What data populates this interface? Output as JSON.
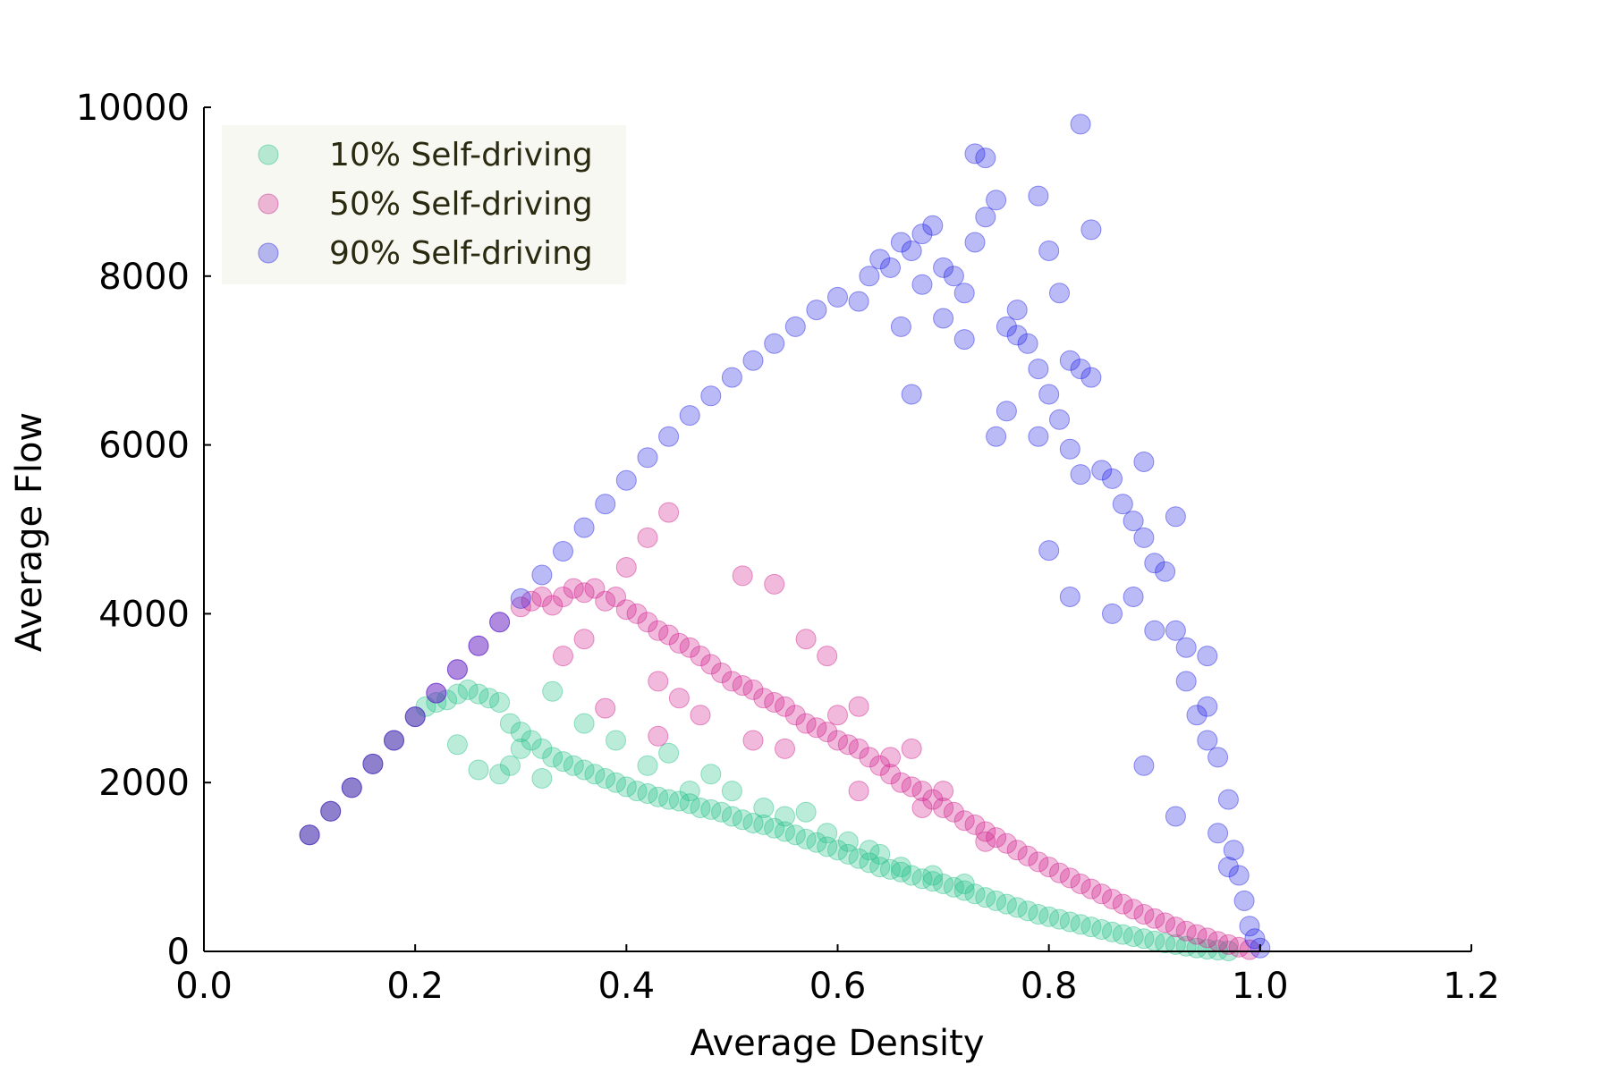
{
  "chart_data": {
    "type": "scatter",
    "title": "",
    "xlabel": "Average Density",
    "ylabel": "Average Flow",
    "xlim": [
      0.0,
      1.2
    ],
    "ylim": [
      0,
      10000
    ],
    "x_ticks": [
      0.0,
      0.2,
      0.4,
      0.6,
      0.8,
      1.0,
      1.2
    ],
    "x_tick_labels": [
      "0.0",
      "0.2",
      "0.4",
      "0.6",
      "0.8",
      "1.0",
      "1.2"
    ],
    "y_ticks": [
      0,
      2000,
      4000,
      6000,
      8000,
      10000
    ],
    "y_tick_labels": [
      "0",
      "2000",
      "4000",
      "6000",
      "8000",
      "10000"
    ],
    "grid": false,
    "legend_position": "top-left",
    "series": [
      {
        "name": "10% Self-driving",
        "color": "#1fbf86",
        "points": [
          [
            0.1,
            1380
          ],
          [
            0.12,
            1660
          ],
          [
            0.14,
            1940
          ],
          [
            0.16,
            2220
          ],
          [
            0.18,
            2500
          ],
          [
            0.2,
            2780
          ],
          [
            0.21,
            2900
          ],
          [
            0.22,
            2950
          ],
          [
            0.23,
            2980
          ],
          [
            0.24,
            3050
          ],
          [
            0.25,
            3100
          ],
          [
            0.26,
            3050
          ],
          [
            0.27,
            3000
          ],
          [
            0.28,
            2950
          ],
          [
            0.29,
            2700
          ],
          [
            0.3,
            2600
          ],
          [
            0.31,
            2500
          ],
          [
            0.32,
            2400
          ],
          [
            0.33,
            2300
          ],
          [
            0.34,
            2250
          ],
          [
            0.35,
            2200
          ],
          [
            0.36,
            2150
          ],
          [
            0.37,
            2100
          ],
          [
            0.38,
            2050
          ],
          [
            0.39,
            2000
          ],
          [
            0.4,
            1950
          ],
          [
            0.41,
            1900
          ],
          [
            0.42,
            1870
          ],
          [
            0.43,
            1830
          ],
          [
            0.44,
            1800
          ],
          [
            0.45,
            1780
          ],
          [
            0.46,
            1750
          ],
          [
            0.47,
            1700
          ],
          [
            0.48,
            1680
          ],
          [
            0.49,
            1650
          ],
          [
            0.5,
            1600
          ],
          [
            0.51,
            1560
          ],
          [
            0.52,
            1520
          ],
          [
            0.53,
            1500
          ],
          [
            0.54,
            1460
          ],
          [
            0.55,
            1420
          ],
          [
            0.56,
            1380
          ],
          [
            0.57,
            1330
          ],
          [
            0.58,
            1290
          ],
          [
            0.59,
            1240
          ],
          [
            0.6,
            1200
          ],
          [
            0.61,
            1150
          ],
          [
            0.62,
            1100
          ],
          [
            0.63,
            1050
          ],
          [
            0.64,
            1000
          ],
          [
            0.65,
            970
          ],
          [
            0.66,
            940
          ],
          [
            0.67,
            900
          ],
          [
            0.68,
            860
          ],
          [
            0.69,
            830
          ],
          [
            0.7,
            800
          ],
          [
            0.71,
            760
          ],
          [
            0.72,
            720
          ],
          [
            0.73,
            680
          ],
          [
            0.74,
            640
          ],
          [
            0.75,
            600
          ],
          [
            0.76,
            560
          ],
          [
            0.77,
            520
          ],
          [
            0.78,
            480
          ],
          [
            0.79,
            440
          ],
          [
            0.8,
            410
          ],
          [
            0.81,
            380
          ],
          [
            0.82,
            350
          ],
          [
            0.83,
            320
          ],
          [
            0.84,
            290
          ],
          [
            0.85,
            260
          ],
          [
            0.86,
            230
          ],
          [
            0.87,
            200
          ],
          [
            0.88,
            175
          ],
          [
            0.89,
            150
          ],
          [
            0.9,
            125
          ],
          [
            0.91,
            100
          ],
          [
            0.92,
            80
          ],
          [
            0.93,
            60
          ],
          [
            0.94,
            40
          ],
          [
            0.95,
            25
          ],
          [
            0.96,
            15
          ],
          [
            0.97,
            5
          ],
          [
            0.24,
            2450
          ],
          [
            0.26,
            2150
          ],
          [
            0.28,
            2100
          ],
          [
            0.3,
            2400
          ],
          [
            0.33,
            3080
          ],
          [
            0.36,
            2700
          ],
          [
            0.32,
            2050
          ],
          [
            0.29,
            2200
          ],
          [
            0.39,
            2500
          ],
          [
            0.42,
            2200
          ],
          [
            0.44,
            2350
          ],
          [
            0.46,
            1900
          ],
          [
            0.48,
            2100
          ],
          [
            0.5,
            1900
          ],
          [
            0.53,
            1700
          ],
          [
            0.55,
            1600
          ],
          [
            0.57,
            1650
          ],
          [
            0.59,
            1400
          ],
          [
            0.61,
            1300
          ],
          [
            0.63,
            1200
          ],
          [
            0.64,
            1150
          ],
          [
            0.66,
            1000
          ],
          [
            0.69,
            900
          ],
          [
            0.72,
            800
          ]
        ]
      },
      {
        "name": "50% Self-driving",
        "color": "#cf1a8a",
        "points": [
          [
            0.1,
            1380
          ],
          [
            0.12,
            1660
          ],
          [
            0.14,
            1940
          ],
          [
            0.16,
            2220
          ],
          [
            0.18,
            2500
          ],
          [
            0.2,
            2780
          ],
          [
            0.22,
            3060
          ],
          [
            0.24,
            3340
          ],
          [
            0.26,
            3620
          ],
          [
            0.28,
            3900
          ],
          [
            0.3,
            4080
          ],
          [
            0.31,
            4150
          ],
          [
            0.32,
            4200
          ],
          [
            0.33,
            4100
          ],
          [
            0.34,
            4200
          ],
          [
            0.35,
            4300
          ],
          [
            0.36,
            4250
          ],
          [
            0.37,
            4300
          ],
          [
            0.38,
            4150
          ],
          [
            0.39,
            4200
          ],
          [
            0.4,
            4050
          ],
          [
            0.41,
            4000
          ],
          [
            0.42,
            3900
          ],
          [
            0.43,
            3800
          ],
          [
            0.44,
            3750
          ],
          [
            0.45,
            3650
          ],
          [
            0.46,
            3600
          ],
          [
            0.47,
            3500
          ],
          [
            0.48,
            3400
          ],
          [
            0.49,
            3300
          ],
          [
            0.5,
            3200
          ],
          [
            0.51,
            3150
          ],
          [
            0.52,
            3100
          ],
          [
            0.53,
            3000
          ],
          [
            0.54,
            2950
          ],
          [
            0.55,
            2900
          ],
          [
            0.56,
            2800
          ],
          [
            0.57,
            2700
          ],
          [
            0.58,
            2650
          ],
          [
            0.59,
            2600
          ],
          [
            0.6,
            2500
          ],
          [
            0.61,
            2450
          ],
          [
            0.62,
            2400
          ],
          [
            0.63,
            2300
          ],
          [
            0.64,
            2200
          ],
          [
            0.65,
            2100
          ],
          [
            0.66,
            2000
          ],
          [
            0.67,
            1950
          ],
          [
            0.68,
            1900
          ],
          [
            0.69,
            1800
          ],
          [
            0.7,
            1700
          ],
          [
            0.71,
            1650
          ],
          [
            0.72,
            1550
          ],
          [
            0.73,
            1500
          ],
          [
            0.74,
            1420
          ],
          [
            0.75,
            1350
          ],
          [
            0.76,
            1280
          ],
          [
            0.77,
            1200
          ],
          [
            0.78,
            1130
          ],
          [
            0.79,
            1060
          ],
          [
            0.8,
            1000
          ],
          [
            0.81,
            930
          ],
          [
            0.82,
            870
          ],
          [
            0.83,
            800
          ],
          [
            0.84,
            740
          ],
          [
            0.85,
            680
          ],
          [
            0.86,
            620
          ],
          [
            0.87,
            560
          ],
          [
            0.88,
            500
          ],
          [
            0.89,
            440
          ],
          [
            0.9,
            390
          ],
          [
            0.91,
            340
          ],
          [
            0.92,
            290
          ],
          [
            0.93,
            240
          ],
          [
            0.94,
            200
          ],
          [
            0.95,
            160
          ],
          [
            0.96,
            120
          ],
          [
            0.97,
            80
          ],
          [
            0.98,
            50
          ],
          [
            0.99,
            20
          ],
          [
            0.44,
            5200
          ],
          [
            0.42,
            4900
          ],
          [
            0.4,
            4550
          ],
          [
            0.51,
            4450
          ],
          [
            0.54,
            4350
          ],
          [
            0.36,
            3700
          ],
          [
            0.34,
            3500
          ],
          [
            0.43,
            3200
          ],
          [
            0.45,
            3000
          ],
          [
            0.47,
            2800
          ],
          [
            0.52,
            2500
          ],
          [
            0.55,
            2400
          ],
          [
            0.6,
            2800
          ],
          [
            0.62,
            2900
          ],
          [
            0.65,
            2300
          ],
          [
            0.67,
            2400
          ],
          [
            0.38,
            2880
          ],
          [
            0.43,
            2550
          ],
          [
            0.59,
            3500
          ],
          [
            0.57,
            3700
          ],
          [
            0.62,
            1900
          ],
          [
            0.68,
            1700
          ],
          [
            0.74,
            1300
          ],
          [
            0.7,
            1900
          ]
        ]
      },
      {
        "name": "90% Self-driving",
        "color": "#1a1ae6",
        "points": [
          [
            0.1,
            1380
          ],
          [
            0.12,
            1660
          ],
          [
            0.14,
            1940
          ],
          [
            0.16,
            2220
          ],
          [
            0.18,
            2500
          ],
          [
            0.2,
            2780
          ],
          [
            0.22,
            3060
          ],
          [
            0.24,
            3340
          ],
          [
            0.26,
            3620
          ],
          [
            0.28,
            3900
          ],
          [
            0.3,
            4180
          ],
          [
            0.32,
            4460
          ],
          [
            0.34,
            4740
          ],
          [
            0.36,
            5020
          ],
          [
            0.38,
            5300
          ],
          [
            0.4,
            5580
          ],
          [
            0.42,
            5850
          ],
          [
            0.44,
            6100
          ],
          [
            0.46,
            6350
          ],
          [
            0.48,
            6580
          ],
          [
            0.5,
            6800
          ],
          [
            0.52,
            7000
          ],
          [
            0.54,
            7200
          ],
          [
            0.56,
            7400
          ],
          [
            0.58,
            7600
          ],
          [
            0.6,
            7750
          ],
          [
            0.62,
            7700
          ],
          [
            0.63,
            8000
          ],
          [
            0.64,
            8200
          ],
          [
            0.65,
            8100
          ],
          [
            0.66,
            8400
          ],
          [
            0.67,
            8300
          ],
          [
            0.68,
            8500
          ],
          [
            0.69,
            8600
          ],
          [
            0.7,
            8100
          ],
          [
            0.71,
            8000
          ],
          [
            0.72,
            7800
          ],
          [
            0.73,
            8400
          ],
          [
            0.74,
            8700
          ],
          [
            0.75,
            8900
          ],
          [
            0.76,
            7400
          ],
          [
            0.77,
            7300
          ],
          [
            0.78,
            7200
          ],
          [
            0.79,
            6900
          ],
          [
            0.8,
            6600
          ],
          [
            0.81,
            6300
          ],
          [
            0.82,
            7000
          ],
          [
            0.83,
            6900
          ],
          [
            0.84,
            6800
          ],
          [
            0.85,
            5700
          ],
          [
            0.86,
            5600
          ],
          [
            0.87,
            5300
          ],
          [
            0.88,
            5100
          ],
          [
            0.89,
            4900
          ],
          [
            0.9,
            4600
          ],
          [
            0.91,
            4500
          ],
          [
            0.92,
            3800
          ],
          [
            0.93,
            3200
          ],
          [
            0.94,
            2800
          ],
          [
            0.95,
            2500
          ],
          [
            0.96,
            2300
          ],
          [
            0.97,
            1800
          ],
          [
            0.975,
            1200
          ],
          [
            0.98,
            900
          ],
          [
            0.985,
            600
          ],
          [
            0.99,
            300
          ],
          [
            0.995,
            150
          ],
          [
            1.0,
            40
          ],
          [
            0.83,
            9800
          ],
          [
            0.73,
            9450
          ],
          [
            0.74,
            9400
          ],
          [
            0.79,
            8950
          ],
          [
            0.84,
            8550
          ],
          [
            0.8,
            8300
          ],
          [
            0.66,
            7400
          ],
          [
            0.67,
            6600
          ],
          [
            0.72,
            7250
          ],
          [
            0.76,
            6400
          ],
          [
            0.75,
            6100
          ],
          [
            0.79,
            6100
          ],
          [
            0.82,
            5950
          ],
          [
            0.83,
            5650
          ],
          [
            0.8,
            4750
          ],
          [
            0.82,
            4200
          ],
          [
            0.86,
            4000
          ],
          [
            0.88,
            4200
          ],
          [
            0.89,
            5800
          ],
          [
            0.92,
            5150
          ],
          [
            0.9,
            3800
          ],
          [
            0.93,
            3600
          ],
          [
            0.95,
            3500
          ],
          [
            0.89,
            2200
          ],
          [
            0.92,
            1600
          ],
          [
            0.95,
            2900
          ],
          [
            0.96,
            1400
          ],
          [
            0.97,
            1000
          ],
          [
            0.7,
            7500
          ],
          [
            0.68,
            7900
          ],
          [
            0.77,
            7600
          ],
          [
            0.81,
            7800
          ]
        ]
      }
    ]
  }
}
